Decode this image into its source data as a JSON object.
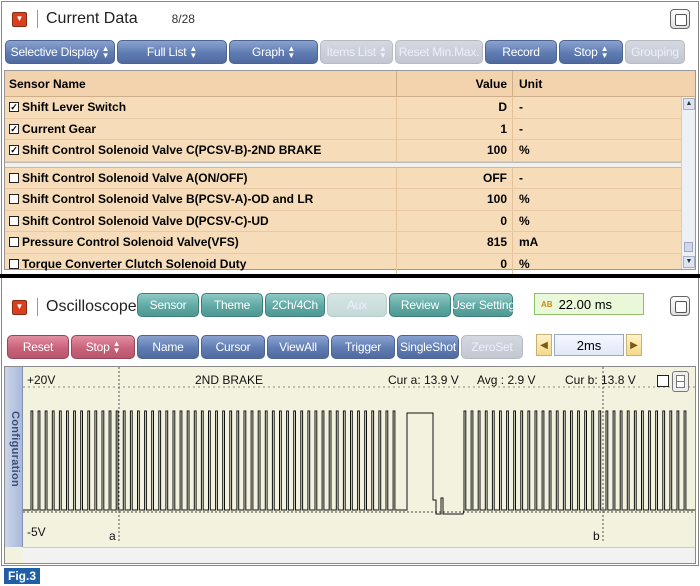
{
  "current_data": {
    "title": "Current Data",
    "page_count": "8/28",
    "toolbar": [
      {
        "label": "Selective Display",
        "arrows": true,
        "disabled": false
      },
      {
        "label": "Full List",
        "arrows": true,
        "disabled": false
      },
      {
        "label": "Graph",
        "arrows": true,
        "disabled": false
      },
      {
        "label": "Items List",
        "arrows": true,
        "disabled": true
      },
      {
        "label": "Reset Min.Max.",
        "arrows": false,
        "disabled": true
      },
      {
        "label": "Record",
        "arrows": false,
        "disabled": false
      },
      {
        "label": "Stop",
        "arrows": true,
        "disabled": false
      },
      {
        "label": "Grouping",
        "arrows": false,
        "disabled": true
      }
    ],
    "columns": {
      "name": "Sensor Name",
      "value": "Value",
      "unit": "Unit"
    },
    "rows_selected": [
      {
        "checked": true,
        "name": "Shift Lever Switch",
        "value": "D",
        "unit": "-"
      },
      {
        "checked": true,
        "name": "Current Gear",
        "value": "1",
        "unit": "-"
      },
      {
        "checked": true,
        "name": "Shift Control Solenoid Valve C(PCSV-B)-2ND BRAKE",
        "value": "100",
        "unit": "%"
      }
    ],
    "rows_other": [
      {
        "checked": false,
        "name": "Shift Control Solenoid Valve A(ON/OFF)",
        "value": "OFF",
        "unit": "-"
      },
      {
        "checked": false,
        "name": "Shift Control Solenoid Valve B(PCSV-A)-OD and LR",
        "value": "100",
        "unit": "%"
      },
      {
        "checked": false,
        "name": "Shift Control Solenoid Valve D(PCSV-C)-UD",
        "value": "0",
        "unit": "%"
      },
      {
        "checked": false,
        "name": "Pressure Control Solenoid Valve(VFS)",
        "value": "815",
        "unit": "mA"
      },
      {
        "checked": false,
        "name": "Torque Converter Clutch Solenoid Duty",
        "value": "0",
        "unit": "%"
      }
    ]
  },
  "oscilloscope": {
    "title": "Oscilloscope",
    "top_buttons": [
      {
        "label": "Sensor",
        "disabled": false
      },
      {
        "label": "Theme",
        "disabled": false
      },
      {
        "label": "2Ch/4Ch",
        "disabled": false
      },
      {
        "label": "Aux",
        "disabled": true
      },
      {
        "label": "Review",
        "disabled": false
      },
      {
        "label": "User Setting",
        "disabled": false
      }
    ],
    "time_readout": "22.00 ms",
    "time_icon_letters": "AB",
    "bottom_buttons": [
      {
        "label": "Reset",
        "color": "pink",
        "arrows": false,
        "disabled": false
      },
      {
        "label": "Stop",
        "color": "pink",
        "arrows": true,
        "disabled": false
      },
      {
        "label": "Name",
        "color": "blue",
        "arrows": false,
        "disabled": false
      },
      {
        "label": "Cursor",
        "color": "blue",
        "arrows": false,
        "disabled": false
      },
      {
        "label": "ViewAll",
        "color": "blue",
        "arrows": false,
        "disabled": false
      },
      {
        "label": "Trigger",
        "color": "blue",
        "arrows": false,
        "disabled": false
      },
      {
        "label": "SingleShot",
        "color": "blue",
        "arrows": false,
        "disabled": false
      },
      {
        "label": "ZeroSet",
        "color": "blue",
        "arrows": false,
        "disabled": true
      }
    ],
    "time_division": "2ms",
    "config_tab": "Configuration",
    "scale_top": "+20V",
    "scale_bottom": "-5V",
    "channel_label": "2ND BRAKE",
    "cursor_a_value": "Cur a: 13.9 V",
    "avg_value": "Avg : 2.9 V",
    "cursor_b_value": "Cur b: 13.8 V",
    "cursor_a_label": "a",
    "cursor_b_label": "b"
  },
  "figure_label": "Fig.3"
}
